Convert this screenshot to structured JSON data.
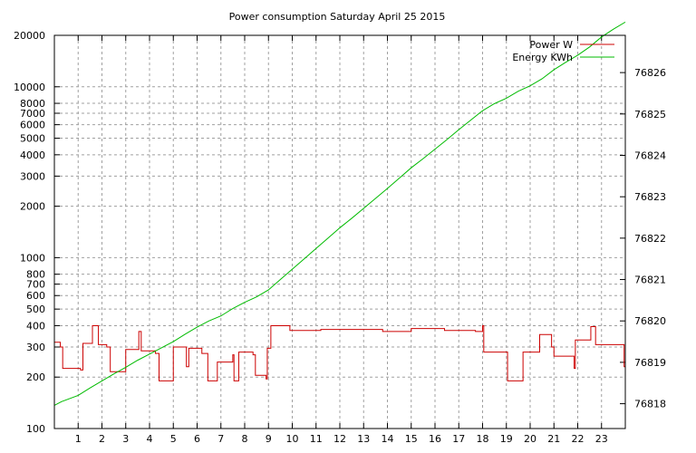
{
  "chart_data": {
    "type": "line",
    "title": "Power consumption Saturday April 25 2015",
    "x_ticks": [
      1,
      2,
      3,
      4,
      5,
      6,
      7,
      8,
      9,
      10,
      11,
      12,
      13,
      14,
      15,
      16,
      17,
      18,
      19,
      20,
      21,
      22,
      23
    ],
    "xlim": [
      0,
      24
    ],
    "y_left": {
      "scale": "log",
      "lim": [
        100,
        20000
      ],
      "ticks": [
        100,
        200,
        300,
        400,
        500,
        600,
        700,
        800,
        1000,
        2000,
        3000,
        4000,
        5000,
        6000,
        7000,
        8000,
        10000,
        20000
      ]
    },
    "y_right": {
      "scale": "linear",
      "lim": [
        76817.4,
        76826.9
      ],
      "ticks": [
        76818,
        76819,
        76820,
        76821,
        76822,
        76823,
        76824,
        76825,
        76826
      ]
    },
    "grid": true,
    "legend_position": "top-right",
    "series": [
      {
        "name": "Power W",
        "color": "#cc0000",
        "axis": "left",
        "step": true,
        "points": [
          [
            0.0,
            320
          ],
          [
            0.25,
            300
          ],
          [
            0.35,
            225
          ],
          [
            1.1,
            220
          ],
          [
            1.2,
            315
          ],
          [
            1.6,
            400
          ],
          [
            1.85,
            310
          ],
          [
            2.2,
            300
          ],
          [
            2.35,
            215
          ],
          [
            3.0,
            290
          ],
          [
            3.55,
            370
          ],
          [
            3.65,
            285
          ],
          [
            4.25,
            275
          ],
          [
            4.4,
            190
          ],
          [
            5.0,
            300
          ],
          [
            5.55,
            230
          ],
          [
            5.65,
            295
          ],
          [
            6.2,
            275
          ],
          [
            6.45,
            190
          ],
          [
            6.85,
            245
          ],
          [
            7.5,
            270
          ],
          [
            7.55,
            190
          ],
          [
            7.75,
            280
          ],
          [
            8.35,
            270
          ],
          [
            8.45,
            205
          ],
          [
            8.9,
            195
          ],
          [
            8.95,
            295
          ],
          [
            9.1,
            400
          ],
          [
            9.9,
            375
          ],
          [
            11.2,
            380
          ],
          [
            13.8,
            370
          ],
          [
            15.0,
            385
          ],
          [
            16.4,
            375
          ],
          [
            17.7,
            370
          ],
          [
            18.0,
            400
          ],
          [
            18.05,
            280
          ],
          [
            19.05,
            190
          ],
          [
            19.7,
            280
          ],
          [
            20.4,
            355
          ],
          [
            20.9,
            300
          ],
          [
            21.0,
            265
          ],
          [
            21.85,
            225
          ],
          [
            21.9,
            330
          ],
          [
            22.55,
            395
          ],
          [
            22.75,
            310
          ],
          [
            23.95,
            230
          ]
        ]
      },
      {
        "name": "Energy KWh",
        "color": "#00bb00",
        "axis": "right",
        "step": false,
        "points": [
          [
            0.0,
            76817.96
          ],
          [
            0.3,
            76818.05
          ],
          [
            1.0,
            76818.2
          ],
          [
            1.5,
            76818.38
          ],
          [
            2.0,
            76818.55
          ],
          [
            2.5,
            76818.72
          ],
          [
            3.0,
            76818.88
          ],
          [
            3.5,
            76819.05
          ],
          [
            4.0,
            76819.2
          ],
          [
            4.5,
            76819.35
          ],
          [
            5.0,
            76819.5
          ],
          [
            5.5,
            76819.68
          ],
          [
            6.0,
            76819.85
          ],
          [
            6.5,
            76820.0
          ],
          [
            7.0,
            76820.12
          ],
          [
            7.5,
            76820.3
          ],
          [
            8.0,
            76820.45
          ],
          [
            8.5,
            76820.58
          ],
          [
            9.0,
            76820.75
          ],
          [
            9.5,
            76821.0
          ],
          [
            10.0,
            76821.25
          ],
          [
            10.5,
            76821.5
          ],
          [
            11.0,
            76821.75
          ],
          [
            11.5,
            76822.0
          ],
          [
            12.0,
            76822.25
          ],
          [
            12.5,
            76822.48
          ],
          [
            13.0,
            76822.72
          ],
          [
            13.5,
            76822.96
          ],
          [
            14.0,
            76823.2
          ],
          [
            14.5,
            76823.45
          ],
          [
            15.0,
            76823.7
          ],
          [
            15.5,
            76823.92
          ],
          [
            16.0,
            76824.15
          ],
          [
            16.5,
            76824.38
          ],
          [
            17.0,
            76824.62
          ],
          [
            17.5,
            76824.85
          ],
          [
            18.0,
            76825.08
          ],
          [
            18.5,
            76825.25
          ],
          [
            19.0,
            76825.38
          ],
          [
            19.5,
            76825.55
          ],
          [
            20.0,
            76825.68
          ],
          [
            20.5,
            76825.85
          ],
          [
            21.0,
            76826.07
          ],
          [
            21.5,
            76826.25
          ],
          [
            22.0,
            76826.42
          ],
          [
            22.5,
            76826.62
          ],
          [
            23.0,
            76826.86
          ],
          [
            23.5,
            76827.05
          ],
          [
            24.0,
            76827.22
          ]
        ]
      }
    ]
  }
}
